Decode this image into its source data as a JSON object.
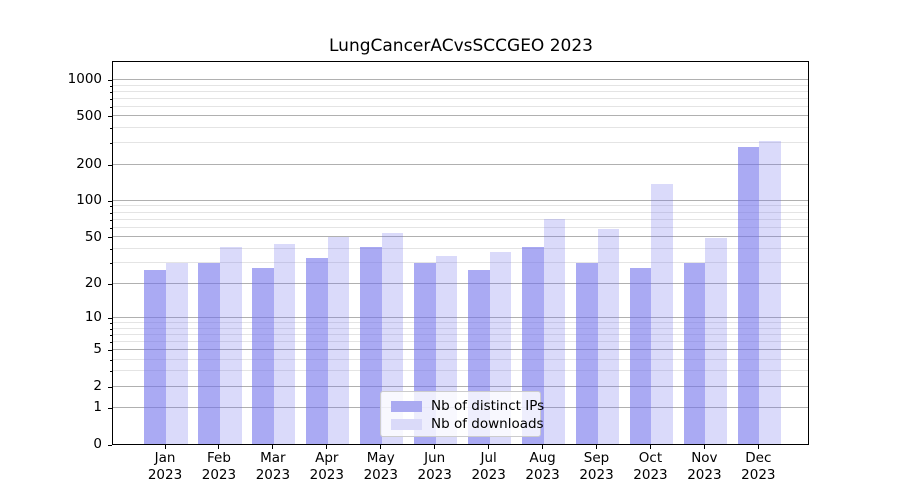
{
  "title": "LungCancerACvsSCCGEO 2023",
  "chart_data": {
    "type": "bar",
    "title": "LungCancerACvsSCCGEO 2023",
    "categories": [
      "Jan 2023",
      "Feb 2023",
      "Mar 2023",
      "Apr 2023",
      "May 2023",
      "Jun 2023",
      "Jul 2023",
      "Aug 2023",
      "Sep 2023",
      "Oct 2023",
      "Nov 2023",
      "Dec 2023"
    ],
    "month_labels": [
      "Jan",
      "Feb",
      "Mar",
      "Apr",
      "May",
      "Jun",
      "Jul",
      "Aug",
      "Sep",
      "Oct",
      "Nov",
      "Dec"
    ],
    "year_label": "2023",
    "series": [
      {
        "name": "Nb of distinct IPs",
        "color": "rgba(113,113,235,0.6)",
        "legend_color": "#aaaaf1",
        "values": [
          26,
          30,
          27,
          33,
          41,
          30,
          26,
          41,
          30,
          27,
          30,
          280
        ]
      },
      {
        "name": "Nb of downloads",
        "color": "rgba(113,113,235,0.26)",
        "legend_color": "#dadaf9",
        "values": [
          30,
          41,
          43,
          50,
          54,
          34,
          37,
          70,
          58,
          136,
          49,
          314
        ]
      }
    ],
    "y_scale": "log1p",
    "y_major_ticks": [
      0,
      1,
      2,
      5,
      10,
      20,
      50,
      100,
      200,
      500,
      1000
    ],
    "y_minor_ticks": [
      3,
      4,
      6,
      7,
      8,
      9,
      30,
      40,
      60,
      70,
      80,
      90,
      300,
      400,
      600,
      700,
      800,
      900
    ],
    "ylim": [
      0,
      1400
    ],
    "xlabel": "",
    "ylabel": "",
    "grid": {
      "major_color": "#b0b0b0",
      "minor_color": "#e4e4e4",
      "which": "both"
    },
    "legend": {
      "position": "lower center",
      "entries": [
        "Nb of distinct IPs",
        "Nb of downloads"
      ]
    }
  }
}
